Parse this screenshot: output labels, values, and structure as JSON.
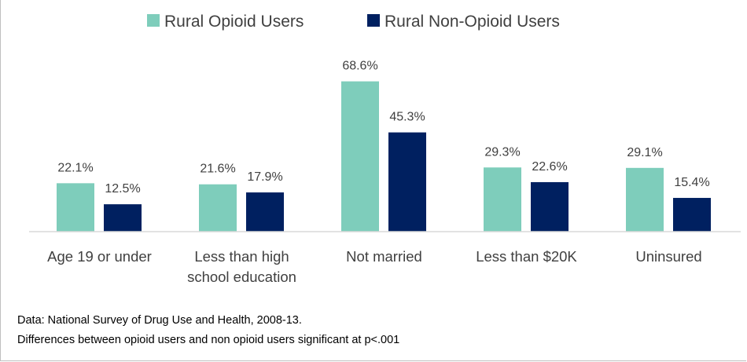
{
  "chart_data": {
    "type": "bar",
    "categories": [
      "Age 19 or under",
      "Less than high school education",
      "Not married",
      "Less than $20K",
      "Uninsured"
    ],
    "category_lines": [
      [
        "Age 19 or under"
      ],
      [
        "Less than high",
        "school education"
      ],
      [
        "Not married"
      ],
      [
        "Less than $20K"
      ],
      [
        "Uninsured"
      ]
    ],
    "series": [
      {
        "name": "Rural Opioid Users",
        "values": [
          22.1,
          21.6,
          68.6,
          29.3,
          29.1
        ],
        "labels": [
          "22.1%",
          "21.6%",
          "68.6%",
          "29.3%",
          "29.1%"
        ],
        "color": "#7ecdbb"
      },
      {
        "name": "Rural Non-Opioid Users",
        "values": [
          12.5,
          17.9,
          45.3,
          22.6,
          15.4
        ],
        "labels": [
          "12.5%",
          "17.9%",
          "45.3%",
          "22.6%",
          "15.4%"
        ],
        "color": "#002060"
      }
    ],
    "title": "",
    "xlabel": "",
    "ylabel": "",
    "ylim": [
      0,
      80
    ],
    "grid": false,
    "legend": "top-center"
  },
  "notes": [
    "Data: National Survey of Drug Use and Health, 2008-13.",
    "Differences between opioid users and non opioid users significant at p<.001"
  ]
}
